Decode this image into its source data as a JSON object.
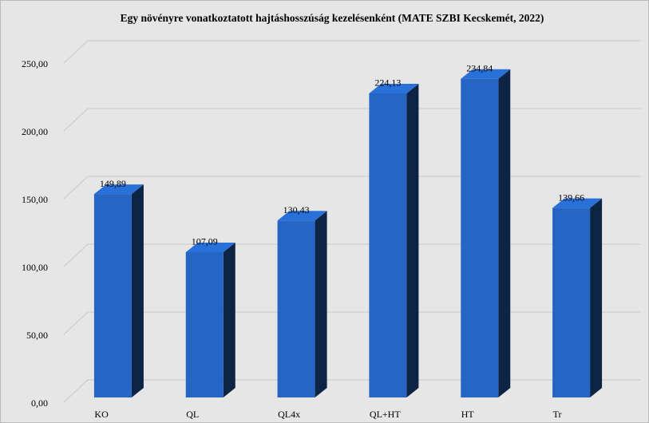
{
  "chart_data": {
    "type": "bar3d",
    "title": "Egy növényre vonatkoztatott hajtáshosszúság kezelésenként (MATE SZBI Kecskemét, 2022)",
    "categories": [
      "KO",
      "QL",
      "QL4x",
      "QL+HT",
      "HT",
      "Tr"
    ],
    "values": [
      149.89,
      107.09,
      130.43,
      224.13,
      234.84,
      139.66
    ],
    "value_labels": [
      "149,89",
      "107,09",
      "130,43",
      "224,13",
      "234,84",
      "139,66"
    ],
    "color": "#2566c4",
    "ylim": [
      0,
      250
    ],
    "yticks": [
      {
        "value": 0,
        "label": "0,00"
      },
      {
        "value": 50,
        "label": "50,00"
      },
      {
        "value": 100,
        "label": "100,00"
      },
      {
        "value": 150,
        "label": "150,00"
      },
      {
        "value": 200,
        "label": "200,00"
      },
      {
        "value": 250,
        "label": "250,00"
      }
    ],
    "grid": true
  }
}
